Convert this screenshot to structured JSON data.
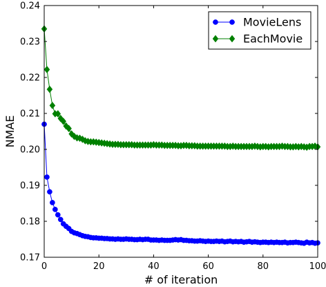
{
  "chart_data": {
    "type": "line",
    "xlabel": "# of iteration",
    "ylabel": "NMAE",
    "xlim": [
      0,
      100
    ],
    "ylim": [
      0.17,
      0.24
    ],
    "xticks": [
      0,
      20,
      40,
      60,
      80,
      100
    ],
    "yticks": [
      0.17,
      0.18,
      0.19,
      0.2,
      0.21,
      0.22,
      0.23,
      0.24
    ],
    "xtick_labels": [
      "0",
      "20",
      "40",
      "60",
      "80",
      "100"
    ],
    "ytick_labels": [
      "0.17",
      "0.18",
      "0.19",
      "0.20",
      "0.21",
      "0.22",
      "0.23",
      "0.24"
    ],
    "grid": false,
    "legend_position": "top-right",
    "series": [
      {
        "name": "MovieLens",
        "color": "#0000ff",
        "marker": "circle",
        "x": [
          0,
          1,
          2,
          3,
          4,
          5,
          6,
          7,
          8,
          9,
          10,
          11,
          12,
          13,
          14,
          15,
          16,
          17,
          18,
          19,
          20,
          21,
          22,
          23,
          24,
          25,
          26,
          27,
          28,
          29,
          30,
          31,
          32,
          33,
          34,
          35,
          36,
          37,
          38,
          39,
          40,
          41,
          42,
          43,
          44,
          45,
          46,
          47,
          48,
          49,
          50,
          51,
          52,
          53,
          54,
          55,
          56,
          57,
          58,
          59,
          60,
          61,
          62,
          63,
          64,
          65,
          66,
          67,
          68,
          69,
          70,
          71,
          72,
          73,
          74,
          75,
          76,
          77,
          78,
          79,
          80,
          81,
          82,
          83,
          84,
          85,
          86,
          87,
          88,
          89,
          90,
          91,
          92,
          93,
          94,
          95,
          96,
          97,
          98,
          99,
          100
        ],
        "y": [
          0.207,
          0.1923,
          0.1882,
          0.1852,
          0.1833,
          0.1818,
          0.1805,
          0.1793,
          0.1786,
          0.178,
          0.1772,
          0.1768,
          0.1766,
          0.1763,
          0.176,
          0.1758,
          0.1757,
          0.1755,
          0.1754,
          0.1754,
          0.1753,
          0.1753,
          0.1752,
          0.1752,
          0.1751,
          0.1751,
          0.175,
          0.1751,
          0.175,
          0.175,
          0.1751,
          0.175,
          0.175,
          0.1749,
          0.1749,
          0.175,
          0.1749,
          0.175,
          0.175,
          0.1748,
          0.1748,
          0.1748,
          0.1747,
          0.1748,
          0.1747,
          0.1747,
          0.1747,
          0.1748,
          0.1749,
          0.1748,
          0.1749,
          0.1747,
          0.1747,
          0.1746,
          0.1746,
          0.1745,
          0.1745,
          0.1746,
          0.1745,
          0.1744,
          0.1745,
          0.1744,
          0.1744,
          0.1745,
          0.1744,
          0.1745,
          0.1743,
          0.1744,
          0.1745,
          0.1743,
          0.1744,
          0.1743,
          0.1744,
          0.1742,
          0.1743,
          0.1744,
          0.1742,
          0.1743,
          0.1742,
          0.1741,
          0.1742,
          0.1742,
          0.1741,
          0.1742,
          0.1741,
          0.1742,
          0.1741,
          0.1741,
          0.1742,
          0.174,
          0.1741,
          0.1741,
          0.1742,
          0.1741,
          0.174,
          0.1739,
          0.1742,
          0.174,
          0.1741,
          0.1739,
          0.174
        ]
      },
      {
        "name": "EachMovie",
        "color": "#008000",
        "marker": "diamond",
        "x": [
          0,
          1,
          2,
          3,
          4,
          5,
          6,
          7,
          8,
          9,
          10,
          11,
          12,
          13,
          14,
          15,
          16,
          17,
          18,
          19,
          20,
          21,
          22,
          23,
          24,
          25,
          26,
          27,
          28,
          29,
          30,
          31,
          32,
          33,
          34,
          35,
          36,
          37,
          38,
          39,
          40,
          41,
          42,
          43,
          44,
          45,
          46,
          47,
          48,
          49,
          50,
          51,
          52,
          53,
          54,
          55,
          56,
          57,
          58,
          59,
          60,
          61,
          62,
          63,
          64,
          65,
          66,
          67,
          68,
          69,
          70,
          71,
          72,
          73,
          74,
          75,
          76,
          77,
          78,
          79,
          80,
          81,
          82,
          83,
          84,
          85,
          86,
          87,
          88,
          89,
          90,
          91,
          92,
          93,
          94,
          95,
          96,
          97,
          98,
          99,
          100
        ],
        "y": [
          0.2335,
          0.2222,
          0.2167,
          0.2122,
          0.2099,
          0.2099,
          0.2086,
          0.2078,
          0.2065,
          0.2058,
          0.2043,
          0.2036,
          0.2032,
          0.2031,
          0.2028,
          0.2024,
          0.2022,
          0.2021,
          0.2021,
          0.202,
          0.2019,
          0.2018,
          0.2017,
          0.2016,
          0.2015,
          0.2014,
          0.2014,
          0.2014,
          0.2013,
          0.2013,
          0.2013,
          0.2013,
          0.2013,
          0.2012,
          0.2012,
          0.2012,
          0.2012,
          0.2012,
          0.2012,
          0.2012,
          0.2013,
          0.2012,
          0.2012,
          0.2012,
          0.2011,
          0.2011,
          0.2011,
          0.2011,
          0.2011,
          0.201,
          0.201,
          0.2011,
          0.2011,
          0.201,
          0.201,
          0.201,
          0.2009,
          0.2009,
          0.2009,
          0.2009,
          0.2009,
          0.2009,
          0.2009,
          0.2009,
          0.2009,
          0.2009,
          0.2009,
          0.2008,
          0.2008,
          0.2009,
          0.2008,
          0.2008,
          0.2008,
          0.2008,
          0.2008,
          0.2008,
          0.2008,
          0.2009,
          0.2008,
          0.2007,
          0.2008,
          0.2008,
          0.2007,
          0.2008,
          0.2008,
          0.2008,
          0.2008,
          0.2009,
          0.2008,
          0.2008,
          0.2007,
          0.2007,
          0.2008,
          0.2007,
          0.2008,
          0.2007,
          0.2006,
          0.2008,
          0.2008,
          0.2009,
          0.2007
        ]
      }
    ]
  }
}
